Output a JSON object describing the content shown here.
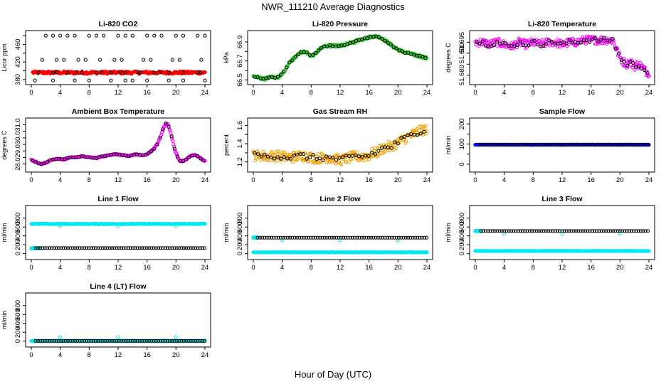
{
  "page": {
    "title": "NWR_111210  Average Diagnostics",
    "xlabel": "Hour of Day (UTC)"
  },
  "colors": {
    "black": "#000000",
    "red": "#ff0000",
    "green": "#22cc22",
    "magenta": "#ff00ff",
    "orange": "#f0a000",
    "blue": "#0000ff",
    "cyan": "#00e8f0"
  },
  "chart_data": [
    {
      "id": "co2",
      "type": "scatter",
      "title": "Li-820 CO2",
      "ylabel": "Licor ppm",
      "xlim": [
        0,
        24
      ],
      "ylim": [
        375,
        485
      ],
      "xticks": [
        0,
        4,
        8,
        12,
        16,
        20,
        24
      ],
      "yticks": [
        380,
        400,
        420,
        440,
        460,
        480
      ],
      "yticklabels": [
        "380",
        "",
        "420",
        "",
        "460",
        ""
      ],
      "series": [
        {
          "style": "band",
          "color": "red",
          "y": 396,
          "y_spread": 3,
          "x_range": [
            0.2,
            24
          ]
        },
        {
          "style": "points",
          "color": "black",
          "y": 396,
          "x_range": [
            1,
            24
          ],
          "step": 2
        },
        {
          "style": "points",
          "color": "black",
          "x": [
            2,
            3,
            4,
            5,
            6,
            8,
            9,
            10,
            12,
            13,
            14,
            16,
            17,
            18,
            20,
            21,
            23,
            24
          ],
          "y": 480
        },
        {
          "style": "points",
          "color": "black",
          "x": [
            1.5,
            3.5,
            4.5,
            6.5,
            7.5,
            9.5,
            11.5,
            12.5,
            15.5,
            16.5,
            19.5,
            20.5,
            23.5
          ],
          "y": 425
        },
        {
          "style": "points",
          "color": "black",
          "x": [
            0.5,
            3,
            6,
            8,
            11,
            13,
            14,
            16,
            19,
            21,
            24
          ],
          "y": 378
        },
        {
          "style": "points",
          "color": "black",
          "x": [
            3.5,
            6.2,
            9.7,
            12.3,
            14.8,
            17.8,
            23.4
          ],
          "y": 397
        }
      ]
    },
    {
      "id": "pressure",
      "type": "line",
      "title": "Li-820 Pressure",
      "ylabel": "kPa",
      "xlim": [
        0,
        24
      ],
      "ylim": [
        66.48,
        66.99
      ],
      "xticks": [
        0,
        4,
        8,
        12,
        16,
        20,
        24
      ],
      "yticks": [
        66.5,
        66.6,
        66.7,
        66.8,
        66.9
      ],
      "yticklabels": [
        "66.5",
        "",
        "66.7",
        "",
        "66.9"
      ],
      "series": [
        {
          "style": "curve",
          "color": "green",
          "spread": 0.012,
          "x": [
            0,
            0.5,
            1,
            1.5,
            2,
            2.5,
            3,
            3.5,
            4,
            4.5,
            5,
            5.5,
            6,
            6.5,
            7,
            7.5,
            8,
            8.5,
            9,
            9.5,
            10,
            10.5,
            11,
            11.5,
            12,
            12.5,
            13,
            13.5,
            14,
            14.5,
            15,
            15.5,
            16,
            16.5,
            17,
            17.5,
            18,
            18.5,
            19,
            19.5,
            20,
            20.5,
            21,
            21.5,
            22,
            22.5,
            23,
            23.5,
            24
          ],
          "y": [
            66.54,
            66.53,
            66.52,
            66.51,
            66.52,
            66.53,
            66.52,
            66.53,
            66.56,
            66.62,
            66.68,
            66.72,
            66.76,
            66.79,
            66.8,
            66.78,
            66.75,
            66.77,
            66.81,
            66.84,
            66.86,
            66.86,
            66.86,
            66.86,
            66.86,
            66.87,
            66.88,
            66.89,
            66.9,
            66.92,
            66.93,
            66.94,
            66.95,
            66.96,
            66.96,
            66.95,
            66.93,
            66.9,
            66.87,
            66.84,
            66.82,
            66.8,
            66.79,
            66.78,
            66.77,
            66.76,
            66.75,
            66.74,
            66.73
          ]
        },
        {
          "style": "points",
          "color": "black",
          "trace_of": 0,
          "step": 0.4
        }
      ]
    },
    {
      "id": "licor_temp",
      "type": "scatter",
      "title": "Li-820 Temperature",
      "ylabel": "degrees C",
      "xlim": [
        0,
        24
      ],
      "ylim": [
        51.677,
        51.699
      ],
      "xticks": [
        0,
        4,
        8,
        12,
        16,
        20,
        24
      ],
      "yticks": [
        51.68,
        51.685,
        51.69,
        51.695
      ],
      "yticklabels": [
        "51.680",
        "",
        "51.690",
        "51.695"
      ],
      "series": [
        {
          "style": "curve",
          "color": "magenta",
          "spread": 0.0018,
          "x": [
            0,
            1,
            2,
            3,
            4,
            5,
            6,
            7,
            8,
            9,
            10,
            11,
            12,
            13,
            14,
            15,
            16,
            17,
            18,
            19,
            19.5,
            20,
            20.5,
            21,
            21.5,
            22,
            22.5,
            23,
            23.5,
            24
          ],
          "y": [
            51.695,
            51.695,
            51.694,
            51.695,
            51.694,
            51.693,
            51.695,
            51.694,
            51.695,
            51.694,
            51.695,
            51.695,
            51.694,
            51.695,
            51.695,
            51.696,
            51.696,
            51.696,
            51.696,
            51.696,
            51.692,
            51.688,
            51.686,
            51.685,
            51.686,
            51.684,
            51.685,
            51.684,
            51.682,
            51.681
          ]
        },
        {
          "style": "points",
          "color": "black",
          "trace_of": 0,
          "step": 0.4
        }
      ]
    },
    {
      "id": "box_temp",
      "type": "line",
      "title": "Ambient Box Temperature",
      "ylabel": "degrees C",
      "xlim": [
        0,
        24
      ],
      "ylim": [
        27.6,
        31.3
      ],
      "xticks": [
        0,
        4,
        8,
        12,
        16,
        20,
        24
      ],
      "yticks": [
        28.0,
        28.5,
        29.0,
        29.5,
        30.0,
        30.5,
        31.0
      ],
      "yticklabels": [
        "28.0",
        "",
        "29.0",
        "",
        "30.0",
        "",
        "31.0"
      ],
      "series": [
        {
          "style": "curve",
          "color": "magenta",
          "spread": 0.04,
          "x": [
            0,
            0.5,
            1,
            1.5,
            2,
            2.5,
            3,
            3.5,
            4,
            4.5,
            5,
            5.5,
            6,
            6.5,
            7,
            7.5,
            8,
            8.5,
            9,
            9.5,
            10,
            10.5,
            11,
            11.5,
            12,
            12.5,
            13,
            13.5,
            14,
            14.5,
            15,
            15.5,
            16,
            16.5,
            17,
            17.5,
            18,
            18.3,
            18.6,
            18.9,
            19.2,
            19.5,
            19.8,
            20.1,
            20.4,
            20.7,
            21,
            21.5,
            22,
            22.5,
            23,
            23.5,
            24
          ],
          "y": [
            28.3,
            28.2,
            28.05,
            28.0,
            28.1,
            28.25,
            28.35,
            28.4,
            28.4,
            28.35,
            28.45,
            28.5,
            28.5,
            28.55,
            28.6,
            28.55,
            28.5,
            28.5,
            28.45,
            28.55,
            28.6,
            28.65,
            28.7,
            28.75,
            28.75,
            28.7,
            28.65,
            28.6,
            28.7,
            28.75,
            28.7,
            28.65,
            28.75,
            28.95,
            29.2,
            29.6,
            30.3,
            30.8,
            31.1,
            31.0,
            30.5,
            29.9,
            29.2,
            28.7,
            28.35,
            28.2,
            28.25,
            28.4,
            28.6,
            28.7,
            28.6,
            28.4,
            28.2
          ]
        },
        {
          "style": "points",
          "color": "black",
          "trace_of": 0,
          "step": 0.4
        }
      ]
    },
    {
      "id": "rh",
      "type": "scatter",
      "title": "Gas Stream RH",
      "ylabel": "percent",
      "xlim": [
        0,
        24
      ],
      "ylim": [
        1.12,
        1.65
      ],
      "xticks": [
        0,
        4,
        8,
        12,
        16,
        20,
        24
      ],
      "yticks": [
        1.2,
        1.3,
        1.4,
        1.5,
        1.6
      ],
      "yticklabels": [
        "1.2",
        "",
        "1.4",
        "",
        "1.6"
      ],
      "series": [
        {
          "style": "curve",
          "color": "orange",
          "spread": 0.055,
          "x": [
            0,
            1,
            2,
            3,
            4,
            5,
            6,
            7,
            8,
            9,
            10,
            11,
            12,
            13,
            14,
            15,
            16,
            16.5,
            17,
            17.5,
            18,
            18.5,
            19,
            19.5,
            20,
            20.5,
            21,
            21.5,
            22,
            22.5,
            23,
            23.5,
            24
          ],
          "y": [
            1.27,
            1.27,
            1.26,
            1.27,
            1.26,
            1.25,
            1.26,
            1.27,
            1.25,
            1.24,
            1.25,
            1.24,
            1.22,
            1.24,
            1.26,
            1.26,
            1.27,
            1.3,
            1.3,
            1.33,
            1.35,
            1.37,
            1.36,
            1.39,
            1.41,
            1.44,
            1.46,
            1.48,
            1.5,
            1.52,
            1.54,
            1.55,
            1.56
          ]
        },
        {
          "style": "points",
          "color": "black",
          "trace_of": 0,
          "step": 0.45
        }
      ]
    },
    {
      "id": "sample_flow",
      "type": "scatter",
      "title": "Sample Flow",
      "ylabel": "ml/min",
      "xlim": [
        0,
        24
      ],
      "ylim": [
        -25,
        215
      ],
      "xticks": [
        0,
        4,
        8,
        12,
        16,
        20,
        24
      ],
      "yticks": [
        0,
        50,
        100,
        150,
        200
      ],
      "yticklabels": [
        "0",
        "",
        "100",
        "",
        "200"
      ],
      "series": [
        {
          "style": "band",
          "color": "blue",
          "y": 97,
          "y_spread": 0.6,
          "x_range": [
            0,
            24
          ]
        },
        {
          "style": "points",
          "color": "black",
          "y": 97,
          "x_range": [
            0.5,
            24
          ],
          "step": 0.32
        }
      ]
    },
    {
      "id": "line1",
      "type": "scatter",
      "title": "Line 1 Flow",
      "ylabel": "ml/min",
      "xlim": [
        0,
        24
      ],
      "ylim": [
        -70,
        1020
      ],
      "xticks": [
        0,
        4,
        8,
        12,
        16,
        20,
        24
      ],
      "yticks": [
        0,
        200,
        400,
        600,
        800
      ],
      "yticklabels": [
        "0",
        "200",
        "400",
        "600",
        "800"
      ],
      "series": [
        {
          "style": "band",
          "color": "cyan",
          "y": 670,
          "y_spread": 8,
          "x_range": [
            0,
            24
          ]
        },
        {
          "style": "points",
          "color": "cyan",
          "x": [
            4,
            12,
            20
          ],
          "y": 620
        },
        {
          "style": "band",
          "color": "cyan",
          "y": 120,
          "y_spread": 3,
          "x_range": [
            0,
            1.2
          ]
        },
        {
          "style": "points",
          "color": "black",
          "y": 125,
          "x_range": [
            0.6,
            24
          ],
          "step": 0.32
        }
      ]
    },
    {
      "id": "line2",
      "type": "scatter",
      "title": "Line 2 Flow",
      "ylabel": "ml/min",
      "xlim": [
        0,
        24
      ],
      "ylim": [
        -70,
        1020
      ],
      "xticks": [
        0,
        4,
        8,
        12,
        16,
        20,
        24
      ],
      "yticks": [
        0,
        200,
        400,
        600,
        800
      ],
      "yticklabels": [
        "0",
        "200",
        "400",
        "600",
        "800"
      ],
      "series": [
        {
          "style": "band",
          "color": "cyan",
          "y": 30,
          "y_spread": 3,
          "x_range": [
            0,
            24
          ]
        },
        {
          "style": "band",
          "color": "cyan",
          "y": 360,
          "y_spread": 3,
          "x_range": [
            0,
            0.6
          ]
        },
        {
          "style": "points",
          "color": "cyan",
          "x": [
            4,
            12,
            20
          ],
          "y": 300
        },
        {
          "style": "points",
          "color": "black",
          "y": 360,
          "x_range": [
            0.6,
            24
          ],
          "step": 0.32
        }
      ]
    },
    {
      "id": "line3",
      "type": "scatter",
      "title": "Line 3 Flow",
      "ylabel": "ml/min",
      "xlim": [
        0,
        24
      ],
      "ylim": [
        -70,
        1020
      ],
      "xticks": [
        0,
        4,
        8,
        12,
        16,
        20,
        24
      ],
      "yticks": [
        0,
        200,
        400,
        600,
        800
      ],
      "yticklabels": [
        "0",
        "200",
        "400",
        "600",
        "800"
      ],
      "series": [
        {
          "style": "band",
          "color": "cyan",
          "y": 60,
          "y_spread": 3,
          "x_range": [
            0,
            24
          ]
        },
        {
          "style": "band",
          "color": "cyan",
          "y": 510,
          "y_spread": 3,
          "x_range": [
            0,
            0.8
          ]
        },
        {
          "style": "points",
          "color": "cyan",
          "x": [
            4,
            12,
            20
          ],
          "y": 450
        },
        {
          "style": "points",
          "color": "black",
          "y": 510,
          "x_range": [
            0.8,
            24
          ],
          "step": 0.32
        }
      ]
    },
    {
      "id": "line4",
      "type": "scatter",
      "title": "Line 4 (LT) Flow",
      "ylabel": "ml/min",
      "xlim": [
        0,
        24
      ],
      "ylim": [
        -70,
        1020
      ],
      "xticks": [
        0,
        4,
        8,
        12,
        16,
        20,
        24
      ],
      "yticks": [
        0,
        200,
        400,
        600,
        800
      ],
      "yticklabels": [
        "0",
        "200",
        "400",
        "600",
        "800"
      ],
      "series": [
        {
          "style": "band",
          "color": "cyan",
          "y": 5,
          "y_spread": 2,
          "x_range": [
            0,
            24
          ]
        },
        {
          "style": "points",
          "color": "cyan",
          "x": [
            4,
            12,
            20
          ],
          "y": 90
        },
        {
          "style": "points",
          "color": "black",
          "y": 5,
          "x_range": [
            0.6,
            24
          ],
          "step": 0.32
        }
      ]
    }
  ]
}
